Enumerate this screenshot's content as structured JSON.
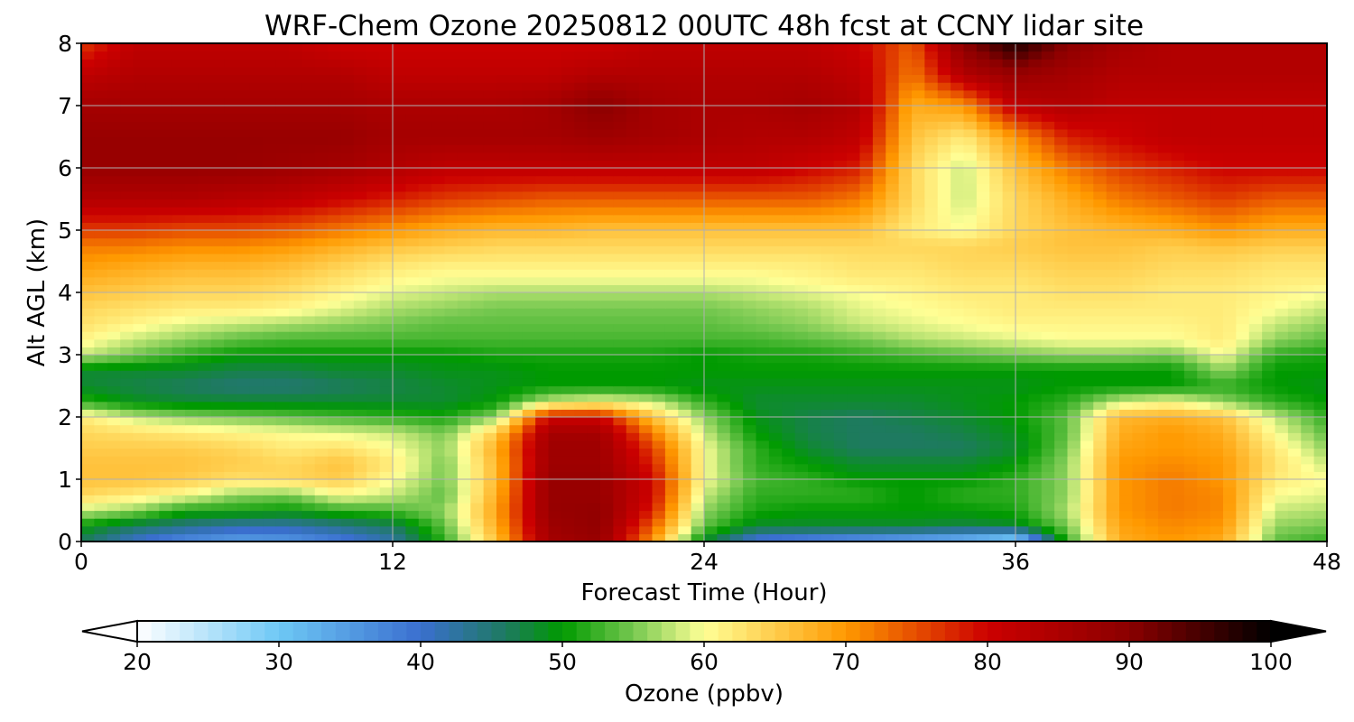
{
  "chart_data": {
    "type": "heatmap",
    "title": "WRF-Chem Ozone  20250812 00UTC 48h fcst at CCNY lidar site",
    "xlabel": "Forecast Time (Hour)",
    "ylabel": "Alt AGL (km)",
    "xlim": [
      0,
      48
    ],
    "ylim": [
      0,
      8
    ],
    "xticks": [
      0,
      12,
      24,
      36,
      48
    ],
    "yticks": [
      0,
      1,
      2,
      3,
      4,
      5,
      6,
      7,
      8
    ],
    "grid": true,
    "x": [
      0,
      2,
      4,
      6,
      8,
      10,
      12,
      14,
      16,
      18,
      20,
      22,
      24,
      26,
      28,
      30,
      32,
      34,
      36,
      38,
      40,
      42,
      44,
      46,
      48
    ],
    "y": [
      0,
      0.25,
      0.5,
      0.75,
      1,
      1.25,
      1.5,
      1.75,
      2,
      2.25,
      2.5,
      2.75,
      3,
      3.25,
      3.5,
      3.75,
      4,
      4.25,
      4.5,
      4.75,
      5,
      5.5,
      6,
      6.5,
      7,
      7.5,
      8
    ],
    "z": [
      [
        46,
        40,
        36,
        34,
        35,
        38,
        42,
        52,
        66,
        86,
        88,
        70,
        48,
        38,
        36,
        34,
        32,
        30,
        26,
        52,
        68,
        70,
        68,
        54,
        52
      ],
      [
        50,
        46,
        44,
        42,
        42,
        44,
        46,
        54,
        68,
        87,
        89,
        74,
        54,
        48,
        48,
        48,
        48,
        47,
        48,
        55,
        69,
        71,
        70,
        56,
        55
      ],
      [
        58,
        56,
        51,
        51,
        50,
        52,
        53,
        56,
        69,
        88,
        89,
        78,
        56,
        51,
        50,
        50,
        50,
        50,
        51,
        57,
        70,
        72,
        71,
        58,
        57
      ],
      [
        64,
        62,
        60,
        56,
        55,
        60,
        58,
        54,
        68,
        88,
        88,
        80,
        58,
        52,
        52,
        52,
        50,
        52,
        52,
        56,
        70,
        72,
        71,
        60,
        59
      ],
      [
        66,
        66,
        65,
        63,
        64,
        65,
        60,
        55,
        67,
        88,
        88,
        80,
        60,
        53,
        52,
        50,
        50,
        50,
        52,
        56,
        70,
        72,
        70,
        62,
        60
      ],
      [
        66,
        66,
        66,
        65,
        64,
        66,
        62,
        55,
        67,
        87,
        87,
        78,
        60,
        52,
        50,
        48,
        48,
        48,
        50,
        56,
        70,
        71,
        70,
        63,
        58
      ],
      [
        65,
        65,
        65,
        64,
        62,
        63,
        60,
        56,
        68,
        87,
        87,
        76,
        60,
        52,
        48,
        46,
        46,
        46,
        48,
        55,
        69,
        70,
        69,
        62,
        56
      ],
      [
        64,
        63,
        62,
        61,
        60,
        59,
        58,
        55,
        65,
        86,
        86,
        72,
        58,
        50,
        47,
        46,
        46,
        47,
        49,
        54,
        68,
        70,
        68,
        60,
        54
      ],
      [
        62,
        58,
        56,
        55,
        54,
        53,
        52,
        51,
        56,
        80,
        80,
        66,
        56,
        49,
        47,
        46,
        47,
        48,
        50,
        54,
        67,
        68,
        66,
        58,
        52
      ],
      [
        52,
        49,
        48,
        48,
        48,
        48,
        48,
        48,
        50,
        58,
        60,
        58,
        52,
        48,
        48,
        48,
        48,
        49,
        50,
        52,
        58,
        60,
        56,
        52,
        50
      ],
      [
        48,
        47,
        46,
        45,
        45,
        46,
        47,
        48,
        49,
        50,
        50,
        50,
        49,
        49,
        49,
        49,
        49,
        49,
        49,
        50,
        50,
        50,
        52,
        50,
        49
      ],
      [
        48,
        48,
        48,
        47,
        47,
        48,
        48,
        49,
        49,
        50,
        50,
        50,
        50,
        50,
        50,
        50,
        50,
        50,
        50,
        50,
        50,
        50,
        56,
        50,
        50
      ],
      [
        58,
        55,
        52,
        50,
        50,
        50,
        50,
        50,
        51,
        51,
        51,
        51,
        50,
        51,
        51,
        52,
        53,
        54,
        55,
        56,
        56,
        55,
        60,
        52,
        51
      ],
      [
        61,
        58,
        56,
        54,
        53,
        53,
        53,
        53,
        53,
        53,
        53,
        53,
        53,
        53,
        54,
        55,
        57,
        58,
        59,
        60,
        60,
        60,
        62,
        56,
        54
      ],
      [
        63,
        61,
        59,
        58,
        57,
        56,
        55,
        54,
        54,
        54,
        54,
        54,
        54,
        55,
        56,
        58,
        59,
        60,
        61,
        61,
        61,
        61,
        62,
        58,
        56
      ],
      [
        64,
        63,
        62,
        62,
        61,
        59,
        57,
        56,
        55,
        55,
        55,
        55,
        55,
        56,
        57,
        59,
        60,
        61,
        62,
        62,
        62,
        62,
        62,
        60,
        58
      ],
      [
        66,
        65,
        64,
        64,
        63,
        61,
        59,
        58,
        57,
        57,
        57,
        57,
        57,
        58,
        59,
        60,
        61,
        62,
        62,
        63,
        63,
        62,
        62,
        61,
        60
      ],
      [
        68,
        67,
        66,
        66,
        65,
        63,
        61,
        60,
        60,
        60,
        60,
        60,
        60,
        60,
        61,
        62,
        62,
        63,
        63,
        64,
        64,
        63,
        63,
        62,
        62
      ],
      [
        70,
        69,
        68,
        68,
        67,
        65,
        63,
        62,
        62,
        62,
        62,
        62,
        62,
        62,
        62,
        63,
        63,
        64,
        64,
        65,
        65,
        64,
        64,
        63,
        63
      ],
      [
        72,
        72,
        71,
        71,
        70,
        68,
        66,
        65,
        64,
        64,
        64,
        64,
        64,
        64,
        64,
        64,
        64,
        64,
        65,
        66,
        66,
        65,
        66,
        65,
        65
      ],
      [
        76,
        76,
        75,
        75,
        74,
        72,
        70,
        68,
        67,
        67,
        66,
        66,
        66,
        66,
        66,
        66,
        62,
        60,
        64,
        66,
        67,
        68,
        70,
        68,
        68
      ],
      [
        84,
        84,
        84,
        83,
        82,
        80,
        78,
        76,
        75,
        74,
        74,
        74,
        74,
        74,
        74,
        72,
        64,
        58,
        64,
        68,
        72,
        74,
        76,
        74,
        74
      ],
      [
        88,
        88,
        88,
        88,
        87,
        86,
        84,
        82,
        82,
        82,
        82,
        82,
        82,
        82,
        80,
        78,
        64,
        58,
        66,
        72,
        76,
        78,
        80,
        80,
        80
      ],
      [
        88,
        88,
        88,
        88,
        88,
        88,
        86,
        86,
        86,
        86,
        87,
        86,
        85,
        84,
        84,
        82,
        66,
        62,
        70,
        78,
        80,
        82,
        82,
        82,
        82
      ],
      [
        86,
        86,
        86,
        86,
        86,
        86,
        85,
        85,
        85,
        86,
        90,
        86,
        85,
        85,
        86,
        84,
        68,
        70,
        82,
        84,
        82,
        82,
        82,
        82,
        82
      ],
      [
        82,
        84,
        84,
        84,
        84,
        84,
        82,
        82,
        82,
        82,
        84,
        84,
        84,
        84,
        84,
        82,
        72,
        84,
        88,
        86,
        84,
        84,
        84,
        84,
        84
      ],
      [
        76,
        82,
        82,
        82,
        82,
        80,
        80,
        80,
        80,
        80,
        80,
        82,
        82,
        82,
        82,
        80,
        74,
        90,
        98,
        90,
        86,
        84,
        84,
        84,
        84
      ]
    ],
    "colorbar": {
      "label": "Ozone  (ppbv)",
      "vmin": 20,
      "vmax": 100,
      "ticks": [
        20,
        30,
        40,
        50,
        60,
        70,
        80,
        90,
        100
      ],
      "extend": "both",
      "orientation": "horizontal",
      "placement": "bottom",
      "colors": [
        {
          "value": 20,
          "color": "#ffffff"
        },
        {
          "value": 30,
          "color": "#6ec8f5"
        },
        {
          "value": 40,
          "color": "#3a6fcf"
        },
        {
          "value": 46,
          "color": "#1e7a60"
        },
        {
          "value": 50,
          "color": "#009a00"
        },
        {
          "value": 55,
          "color": "#76c850"
        },
        {
          "value": 60,
          "color": "#ffff96"
        },
        {
          "value": 70,
          "color": "#ff9900"
        },
        {
          "value": 80,
          "color": "#cc0000"
        },
        {
          "value": 90,
          "color": "#8b0000"
        },
        {
          "value": 100,
          "color": "#000000"
        }
      ],
      "under_color": "#ffffff",
      "over_color": "#000000"
    }
  }
}
